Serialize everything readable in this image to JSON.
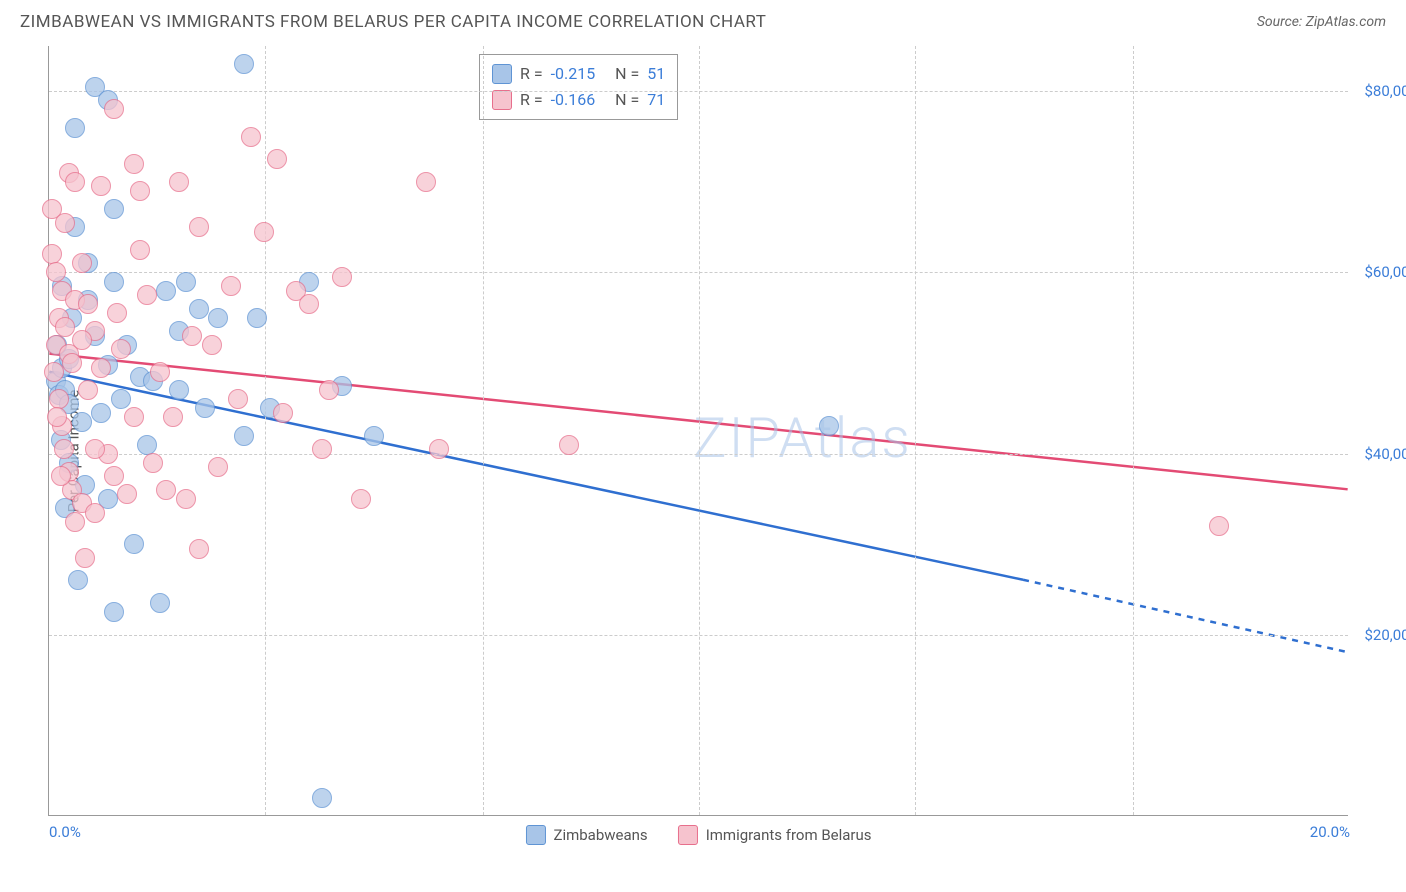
{
  "title": "ZIMBABWEAN VS IMMIGRANTS FROM BELARUS PER CAPITA INCOME CORRELATION CHART",
  "source": "Source: ZipAtlas.com",
  "watermark": "ZIPAtlas",
  "ylabel": "Per Capita Income",
  "chart": {
    "type": "scatter",
    "xmin": 0,
    "xmax": 20,
    "ymin": 0,
    "ymax": 85000,
    "background": "#ffffff",
    "grid_color": "#cccccc",
    "yticks": [
      {
        "v": 20000,
        "label": "$20,000"
      },
      {
        "v": 40000,
        "label": "$40,000"
      },
      {
        "v": 60000,
        "label": "$60,000"
      },
      {
        "v": 80000,
        "label": "$80,000"
      }
    ],
    "xticks_major": [
      3.33,
      6.67,
      10,
      13.33,
      16.67
    ],
    "xticks_label": [
      {
        "v": 0,
        "label": "0.0%",
        "align": "left"
      },
      {
        "v": 20,
        "label": "20.0%",
        "align": "right"
      }
    ],
    "marker_radius": 10,
    "marker_border_width": 1.5,
    "series": [
      {
        "key": "zimbabwe",
        "label": "Zimbabweans",
        "fill": "#a8c5e8",
        "stroke": "#5f94d4",
        "R": "-0.215",
        "N": "51",
        "trend": {
          "x1": 0,
          "y1": 49000,
          "x2": 15,
          "y2": 26000,
          "solid_until_x": 15,
          "dash_to_x": 20,
          "y_at_20": 18000,
          "color": "#2f6fd0",
          "width": 2.5
        },
        "points": [
          [
            0.1,
            48000
          ],
          [
            0.15,
            46500
          ],
          [
            0.2,
            49500
          ],
          [
            0.25,
            47000
          ],
          [
            0.3,
            50500
          ],
          [
            0.7,
            80500
          ],
          [
            0.9,
            79000
          ],
          [
            0.4,
            65000
          ],
          [
            0.6,
            57000
          ],
          [
            1.0,
            59000
          ],
          [
            0.35,
            55000
          ],
          [
            1.2,
            52000
          ],
          [
            1.4,
            48500
          ],
          [
            0.5,
            43500
          ],
          [
            0.8,
            44500
          ],
          [
            1.1,
            46000
          ],
          [
            1.6,
            48000
          ],
          [
            0.3,
            39000
          ],
          [
            0.55,
            36500
          ],
          [
            0.9,
            35000
          ],
          [
            1.3,
            30000
          ],
          [
            0.25,
            34000
          ],
          [
            0.7,
            53000
          ],
          [
            1.5,
            41000
          ],
          [
            2.0,
            53500
          ],
          [
            2.0,
            47000
          ],
          [
            2.1,
            59000
          ],
          [
            2.3,
            56000
          ],
          [
            2.6,
            55000
          ],
          [
            2.4,
            45000
          ],
          [
            3.0,
            42000
          ],
          [
            3.4,
            45000
          ],
          [
            3.2,
            55000
          ],
          [
            3.0,
            83000
          ],
          [
            4.0,
            59000
          ],
          [
            4.5,
            47500
          ],
          [
            5.0,
            42000
          ],
          [
            4.2,
            2000
          ],
          [
            12.0,
            43000
          ],
          [
            0.45,
            26000
          ],
          [
            1.0,
            22500
          ],
          [
            0.18,
            41500
          ],
          [
            0.6,
            61000
          ],
          [
            0.4,
            76000
          ],
          [
            1.0,
            67000
          ],
          [
            1.7,
            23500
          ],
          [
            0.2,
            58500
          ],
          [
            0.12,
            52000
          ],
          [
            0.9,
            49800
          ],
          [
            0.3,
            45500
          ],
          [
            1.8,
            58000
          ]
        ]
      },
      {
        "key": "belarus",
        "label": "Immigrants from Belarus",
        "fill": "#f6c3ce",
        "stroke": "#e76f8c",
        "R": "-0.166",
        "N": "71",
        "trend": {
          "x1": 0,
          "y1": 51000,
          "x2": 20,
          "y2": 36000,
          "color": "#e34b74",
          "width": 2.5
        },
        "points": [
          [
            0.1,
            52000
          ],
          [
            0.15,
            55000
          ],
          [
            0.2,
            58000
          ],
          [
            0.25,
            54000
          ],
          [
            0.3,
            51000
          ],
          [
            0.4,
            57000
          ],
          [
            0.5,
            61000
          ],
          [
            0.6,
            56500
          ],
          [
            0.7,
            53500
          ],
          [
            0.35,
            50000
          ],
          [
            0.3,
            71000
          ],
          [
            0.4,
            70000
          ],
          [
            0.8,
            69500
          ],
          [
            1.0,
            78000
          ],
          [
            1.3,
            72000
          ],
          [
            1.4,
            69000
          ],
          [
            2.0,
            70000
          ],
          [
            2.3,
            65000
          ],
          [
            2.5,
            52000
          ],
          [
            2.8,
            58500
          ],
          [
            3.1,
            75000
          ],
          [
            3.3,
            64500
          ],
          [
            3.5,
            72500
          ],
          [
            3.8,
            58000
          ],
          [
            4.0,
            56500
          ],
          [
            4.2,
            40500
          ],
          [
            4.3,
            47000
          ],
          [
            4.5,
            59500
          ],
          [
            5.8,
            70000
          ],
          [
            6.0,
            40500
          ],
          [
            8.0,
            41000
          ],
          [
            18.0,
            32000
          ],
          [
            0.15,
            46000
          ],
          [
            0.2,
            43000
          ],
          [
            0.23,
            40500
          ],
          [
            0.3,
            38000
          ],
          [
            0.35,
            36000
          ],
          [
            0.5,
            34500
          ],
          [
            0.7,
            33500
          ],
          [
            0.9,
            40000
          ],
          [
            1.0,
            37500
          ],
          [
            1.2,
            35500
          ],
          [
            1.3,
            44000
          ],
          [
            1.6,
            39000
          ],
          [
            1.8,
            36000
          ],
          [
            2.1,
            35000
          ],
          [
            2.3,
            29500
          ],
          [
            2.6,
            38500
          ],
          [
            2.9,
            46000
          ],
          [
            1.5,
            57500
          ],
          [
            1.7,
            49000
          ],
          [
            1.9,
            44000
          ],
          [
            0.6,
            47000
          ],
          [
            0.8,
            49500
          ],
          [
            1.1,
            51500
          ],
          [
            0.05,
            62000
          ],
          [
            0.1,
            60000
          ],
          [
            0.07,
            49000
          ],
          [
            0.5,
            52500
          ],
          [
            0.05,
            67000
          ],
          [
            1.4,
            62500
          ],
          [
            0.4,
            32500
          ],
          [
            0.7,
            40500
          ],
          [
            0.12,
            44000
          ],
          [
            3.6,
            44500
          ],
          [
            4.8,
            35000
          ],
          [
            0.25,
            65500
          ],
          [
            2.2,
            53000
          ],
          [
            0.18,
            37500
          ],
          [
            0.55,
            28500
          ],
          [
            1.05,
            55500
          ]
        ]
      }
    ]
  }
}
